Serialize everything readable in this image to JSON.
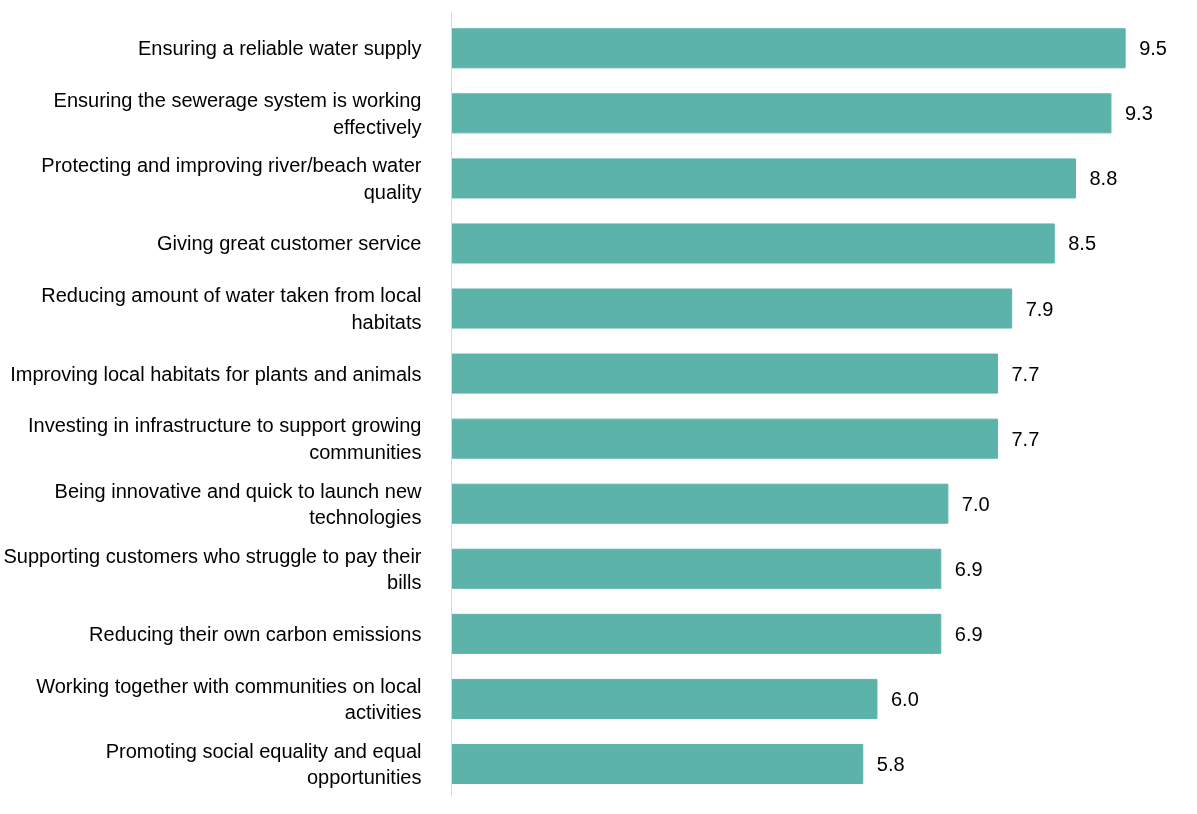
{
  "chart_data": {
    "type": "bar",
    "orientation": "horizontal",
    "categories": [
      "Ensuring a reliable water supply",
      "Ensuring the sewerage system is working effectively",
      "Protecting and improving river/beach water quality",
      "Giving great customer service",
      "Reducing amount of water taken from local habitats",
      "Improving local habitats for plants and animals",
      "Investing in infrastructure to support growing communities",
      "Being innovative and quick to launch new technologies",
      "Supporting customers who struggle to pay their bills",
      "Reducing their own carbon emissions",
      "Working together with communities on local activities",
      "Promoting social equality and equal opportunities"
    ],
    "values": [
      9.5,
      9.3,
      8.8,
      8.5,
      7.9,
      7.7,
      7.7,
      7.0,
      6.9,
      6.9,
      6.0,
      5.8
    ],
    "value_labels": [
      "9.5",
      "9.3",
      "8.8",
      "8.5",
      "7.9",
      "7.7",
      "7.7",
      "7.0",
      "6.9",
      "6.9",
      "6.0",
      "5.8"
    ],
    "color": "#5bb3aa",
    "grid": false
  }
}
